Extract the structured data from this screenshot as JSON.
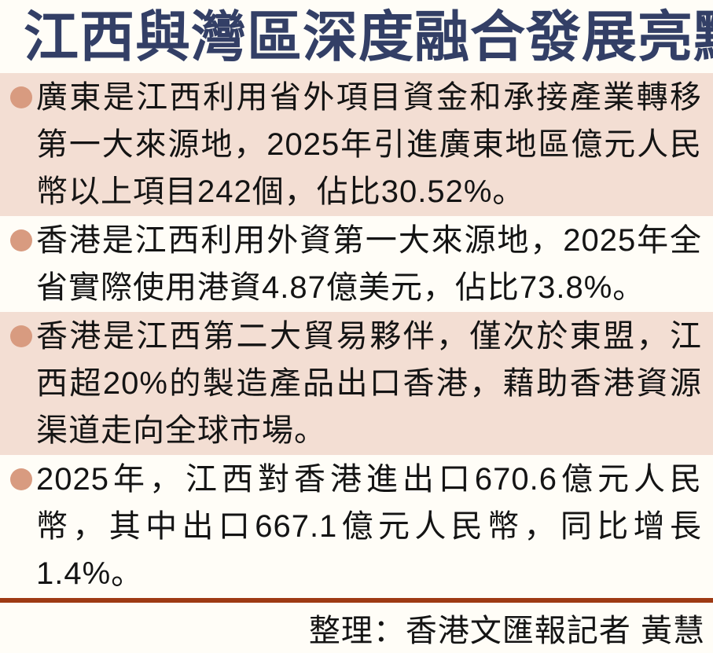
{
  "page": {
    "title": "江西與灣區深度融合發展亮點",
    "bullets": [
      {
        "text": "廣東是江西利用省外項目資金和承接產業轉移第一大來源地，2025年引進廣東地區億元人民幣以上項目242個，佔比30.52%。",
        "highlighted": true
      },
      {
        "text": "香港是江西利用外資第一大來源地，2025年全省實際使用港資4.87億美元，佔比73.8%。",
        "highlighted": false
      },
      {
        "text": "香港是江西第二大貿易夥伴，僅次於東盟，江西超20%的製造產品出口香港，藉助香港資源渠道走向全球市場。",
        "highlighted": true
      },
      {
        "text": "2025年，江西對香港進出口670.6億元人民幣，其中出口667.1億元人民幣，同比增長1.4%。",
        "highlighted": false
      }
    ],
    "credit": "整理：香港文匯報記者  黃慧",
    "colors": {
      "page_bg": "#fffdf7",
      "title": "#333f66",
      "highlight_bg": "#f3ded3",
      "bullet": "#d89b80",
      "rule": "#9e3a14",
      "body_text": "#141414"
    }
  }
}
